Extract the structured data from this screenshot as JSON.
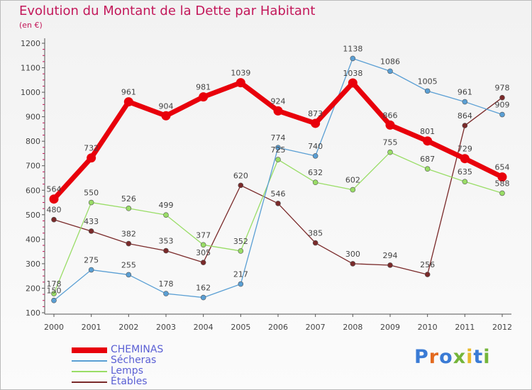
{
  "title": "Evolution du Montant de la Dette par Habitant",
  "subtitle": "(en €)",
  "logo": {
    "text": "Proxiti",
    "colors": [
      "#3a7bd5",
      "#e36a1f",
      "#3a7bd5",
      "#74b53a",
      "#e8b92b",
      "#3a7bd5",
      "#74b53a"
    ]
  },
  "chart_data": {
    "type": "line",
    "x": [
      "2000",
      "2001",
      "2002",
      "2003",
      "2004",
      "2005",
      "2006",
      "2007",
      "2008",
      "2009",
      "2010",
      "2011",
      "2012"
    ],
    "ylim": [
      100,
      1200
    ],
    "yticks": [
      100,
      200,
      300,
      400,
      500,
      600,
      700,
      800,
      900,
      1000,
      1100,
      1200
    ],
    "grid": false,
    "legend_position": "bottom-left",
    "series": [
      {
        "name": "CHEMINAS",
        "color": "#e8000b",
        "values": [
          564,
          732,
          961,
          904,
          981,
          1039,
          924,
          873,
          1038,
          866,
          801,
          729,
          654
        ]
      },
      {
        "name": "Sécheras",
        "color": "#5a9fd4",
        "values": [
          150,
          275,
          255,
          178,
          162,
          217,
          774,
          740,
          1138,
          1086,
          1005,
          961,
          909
        ]
      },
      {
        "name": "Lemps",
        "color": "#99dd66",
        "values": [
          178,
          550,
          526,
          499,
          377,
          352,
          725,
          632,
          602,
          755,
          687,
          635,
          588
        ]
      },
      {
        "name": "Étables",
        "color": "#7a2a2a",
        "values": [
          480,
          433,
          382,
          353,
          305,
          620,
          546,
          385,
          300,
          294,
          256,
          864,
          978
        ]
      }
    ]
  }
}
